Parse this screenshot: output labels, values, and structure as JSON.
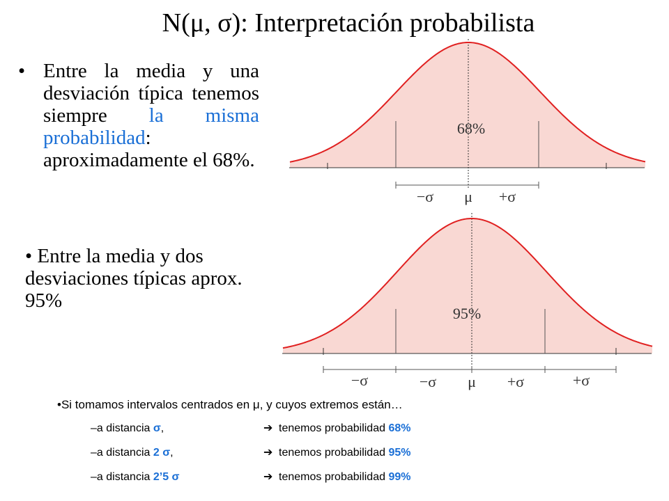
{
  "title": "N(μ, σ): Interpretación probabilista",
  "bullet1": {
    "dot": "•",
    "pre": "Entre la media y una desviación típica tenemos siempre ",
    "highlight": "la misma probabilidad",
    "post": ": aproximadamente el 68%."
  },
  "bullet2": {
    "text": "• Entre la media y dos desviaciones típicas aprox. 95%"
  },
  "figure1": {
    "percent_label": "68%",
    "axis_labels": [
      "−σ",
      "μ",
      "+σ"
    ],
    "fill_color": "#f9d8d3",
    "curve_color": "#e02020"
  },
  "figure2": {
    "percent_label": "95%",
    "axis_labels": [
      "−σ",
      "−σ",
      "μ",
      "+σ",
      "+σ"
    ],
    "fill_color": "#f9d8d3",
    "curve_color": "#e02020"
  },
  "summary": {
    "intro": "•Si tomamos intervalos centrados en μ, y cuyos extremos están…",
    "rows": [
      {
        "left_pre": "–a distancia ",
        "left_val": "σ",
        "left_post": ",",
        "arrow": "➔",
        "right_pre": "tenemos probabilidad ",
        "right_val": "68%"
      },
      {
        "left_pre": "–a distancia ",
        "left_val": "2 σ",
        "left_post": ",",
        "arrow": "➔",
        "right_pre": "tenemos probabilidad ",
        "right_val": "95%"
      },
      {
        "left_pre": "–a distancia ",
        "left_val": "2’5 σ",
        "left_post": "",
        "arrow": "➔",
        "right_pre": "tenemos probabilidad ",
        "right_val": "99%"
      }
    ]
  }
}
